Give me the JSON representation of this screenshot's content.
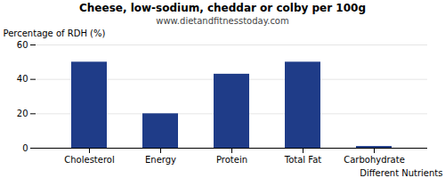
{
  "chart_data": {
    "type": "bar",
    "title": "Cheese, low-sodium, cheddar or colby per 100g",
    "subtitle": "www.dietandfitnesstoday.com",
    "xlabel": "Different Nutrients",
    "ylabel": "Percentage of RDH (%)",
    "categories": [
      "Cholesterol",
      "Energy",
      "Protein",
      "Total Fat",
      "Carbohydrate"
    ],
    "values": [
      50,
      20,
      43,
      50,
      1
    ],
    "color": "#1F3C88",
    "ylim": [
      0,
      60
    ],
    "yticks": [
      0,
      20,
      40,
      60
    ],
    "grid": true
  }
}
